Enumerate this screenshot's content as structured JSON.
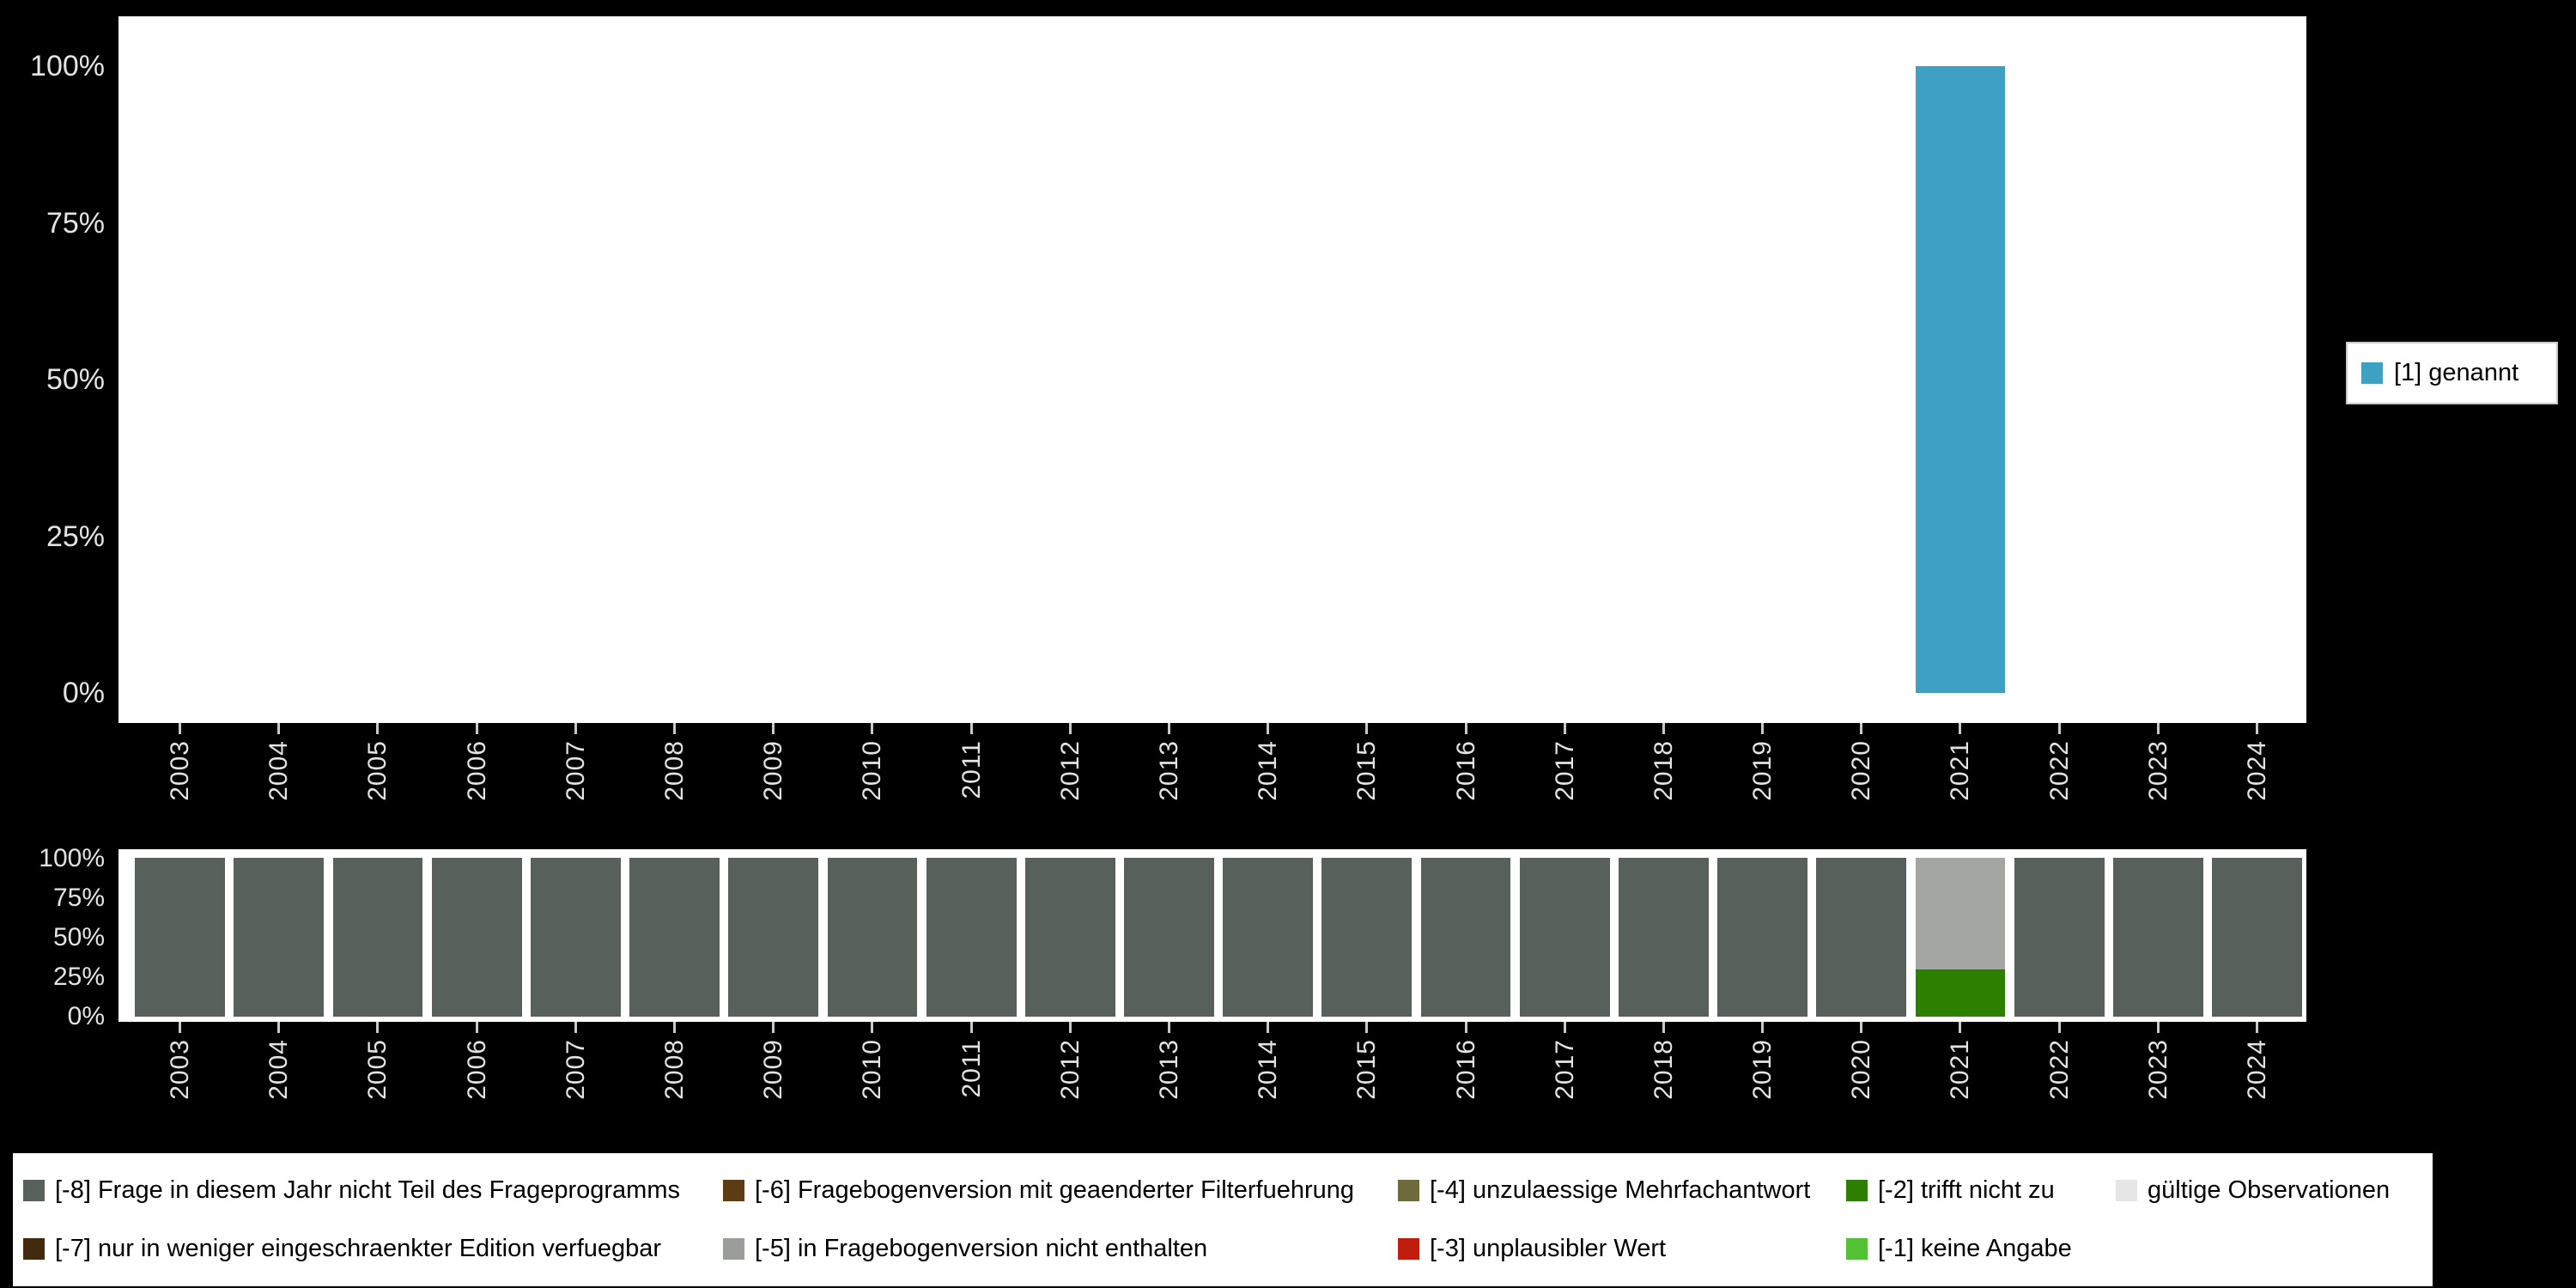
{
  "page": {
    "background": "#000000"
  },
  "top_chart": {
    "yticks": [
      "100%",
      "75%",
      "50%",
      "25%",
      "0%"
    ],
    "legend": {
      "label": "[1] genannt",
      "color": "#3ea0c2"
    }
  },
  "bottom_chart": {
    "yticks": [
      "100%",
      "75%",
      "50%",
      "25%",
      "0%"
    ]
  },
  "missing_legend": {
    "items": [
      {
        "label": "[-8] Frage in diesem Jahr nicht Teil des Frageprogramms",
        "color": "#57605a"
      },
      {
        "label": "[-7] nur in weniger eingeschraenkter Edition verfuegbar",
        "color": "#43290d"
      },
      {
        "label": "[-6] Fragebogenversion mit geaenderter Filterfuehrung",
        "color": "#5e3c13"
      },
      {
        "label": "[-5] in Fragebogenversion nicht enthalten",
        "color": "#9a9d99"
      },
      {
        "label": "[-4] unzulaessige Mehrfachantwort",
        "color": "#6e6a3e"
      },
      {
        "label": "[-3] unplausibler Wert",
        "color": "#bf1d0d"
      },
      {
        "label": "[-2] trifft nicht zu",
        "color": "#2d7f00"
      },
      {
        "label": "[-1] keine Angabe",
        "color": "#52c234"
      },
      {
        "label": "gültige Observationen",
        "color": "#e6e6e6"
      }
    ]
  },
  "chart_data": [
    {
      "type": "bar",
      "title": "",
      "categories": [
        "2003",
        "2004",
        "2005",
        "2006",
        "2007",
        "2008",
        "2009",
        "2010",
        "2011",
        "2012",
        "2013",
        "2014",
        "2015",
        "2016",
        "2017",
        "2018",
        "2019",
        "2020",
        "2021",
        "2022",
        "2023",
        "2024"
      ],
      "series": [
        {
          "name": "[1] genannt",
          "color": "#3ea0c2",
          "values": [
            0,
            0,
            0,
            0,
            0,
            0,
            0,
            0,
            0,
            0,
            0,
            0,
            0,
            0,
            0,
            0,
            0,
            0,
            100,
            0,
            0,
            0
          ]
        }
      ],
      "xlabel": "",
      "ylabel": "",
      "yticks": [
        "0%",
        "25%",
        "50%",
        "75%",
        "100%"
      ],
      "ylim": [
        0,
        100
      ],
      "grid": false,
      "legend_position": "right"
    },
    {
      "type": "stacked-bar",
      "title": "",
      "categories": [
        "2003",
        "2004",
        "2005",
        "2006",
        "2007",
        "2008",
        "2009",
        "2010",
        "2011",
        "2012",
        "2013",
        "2014",
        "2015",
        "2016",
        "2017",
        "2018",
        "2019",
        "2020",
        "2021",
        "2022",
        "2023",
        "2024"
      ],
      "series": [
        {
          "name": "[-8] Frage in diesem Jahr nicht Teil des Frageprogramms",
          "color": "#57605a",
          "values": [
            100,
            100,
            100,
            100,
            100,
            100,
            100,
            100,
            100,
            100,
            100,
            100,
            100,
            100,
            100,
            100,
            100,
            100,
            0,
            100,
            100,
            100
          ]
        },
        {
          "name": "[-2] trifft nicht zu",
          "color": "#2d7f00",
          "values": [
            0,
            0,
            0,
            0,
            0,
            0,
            0,
            0,
            0,
            0,
            0,
            0,
            0,
            0,
            0,
            0,
            0,
            0,
            30,
            0,
            0,
            0
          ]
        },
        {
          "name": "[-5] in Fragebogenversion nicht enthalten",
          "color": "#a3a6a1",
          "values": [
            0,
            0,
            0,
            0,
            0,
            0,
            0,
            0,
            0,
            0,
            0,
            0,
            0,
            0,
            0,
            0,
            0,
            0,
            70,
            0,
            0,
            0
          ]
        }
      ],
      "xlabel": "",
      "ylabel": "",
      "yticks": [
        "0%",
        "25%",
        "50%",
        "75%",
        "100%"
      ],
      "ylim": [
        0,
        100
      ],
      "grid": false,
      "legend_position": "bottom"
    }
  ]
}
